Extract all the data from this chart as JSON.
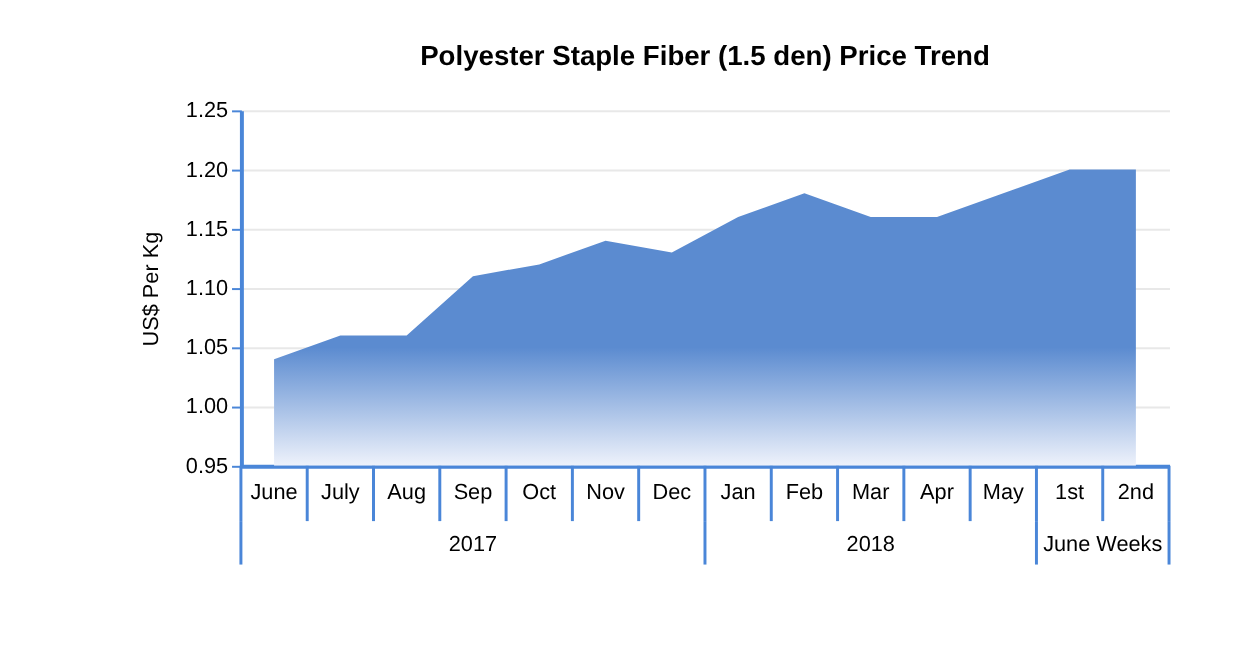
{
  "chart_data": {
    "type": "area",
    "title": "Polyester Staple Fiber (1.5 den) Price Trend",
    "ylabel": "US$ Per Kg",
    "categories": [
      "June",
      "July",
      "Aug",
      "Sep",
      "Oct",
      "Nov",
      "Dec",
      "Jan",
      "Feb",
      "Mar",
      "Apr",
      "May",
      "1st",
      "2nd"
    ],
    "series": [
      {
        "color": "#5b8bd0",
        "values": [
          1.04,
          1.06,
          1.06,
          1.11,
          1.12,
          1.14,
          1.13,
          1.16,
          1.18,
          1.16,
          1.16,
          1.18,
          1.2,
          1.2
        ]
      }
    ],
    "ylim": [
      0.95,
      1.25
    ],
    "yticks": [
      0.95,
      {
        "value": 1.0,
        "label": "1.00"
      },
      1.05,
      {
        "value": 1.1,
        "label": "1.10"
      },
      1.15,
      {
        "value": 1.2,
        "label": "1.20"
      },
      1.25
    ],
    "grid": "y",
    "annotations": [
      "2017",
      "2018",
      "June Weeks"
    ]
  }
}
